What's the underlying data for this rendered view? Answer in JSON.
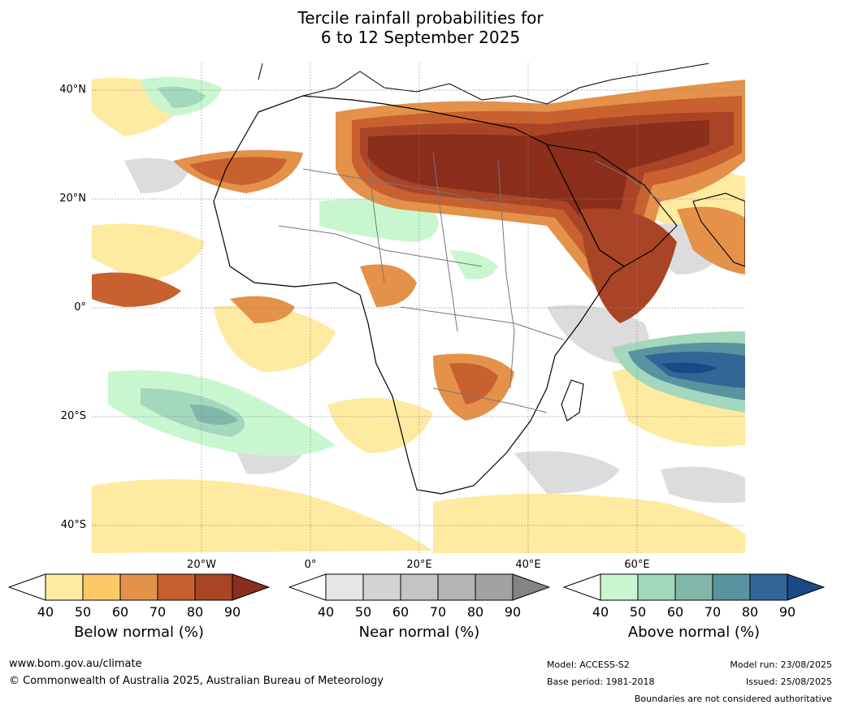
{
  "title": {
    "line1": "Tercile rainfall probabilities for",
    "line2": "6 to 12 September 2025"
  },
  "lat_labels": [
    "40°N",
    "20°N",
    "0°",
    "20°S",
    "40°S"
  ],
  "lon_labels": [
    "20°W",
    "0°",
    "20°E",
    "40°E",
    "60°E"
  ],
  "colorbars": [
    {
      "title": "Below normal (%)",
      "ticks": [
        "40",
        "50",
        "60",
        "70",
        "80",
        "90"
      ],
      "colors": [
        "#ffffff",
        "#feeaa0",
        "#fdc966",
        "#e4914a",
        "#c8602f",
        "#a94426",
        "#8b2e1c"
      ]
    },
    {
      "title": "Near normal (%)",
      "ticks": [
        "40",
        "50",
        "60",
        "70",
        "80",
        "90"
      ],
      "colors": [
        "#ffffff",
        "#e5e5e5",
        "#d4d4d4",
        "#c4c4c4",
        "#b4b4b4",
        "#a2a2a2",
        "#848484"
      ]
    },
    {
      "title": "Above normal (%)",
      "ticks": [
        "40",
        "50",
        "60",
        "70",
        "80",
        "90"
      ],
      "colors": [
        "#ffffff",
        "#c8f7cf",
        "#a3d8bc",
        "#80b7a8",
        "#5a93a0",
        "#336697",
        "#1a4a86"
      ]
    }
  ],
  "footer": {
    "website": "www.bom.gov.au/climate",
    "copyright": "© Commonwealth of Australia 2025, Australian Bureau of Meteorology",
    "model": "Model: ACCESS-S2",
    "base_period": "Base period: 1981-2018",
    "model_run": "Model run: 23/08/2025",
    "issued": "Issued: 25/08/2025",
    "disclaimer": "Boundaries are not considered authoritative"
  }
}
